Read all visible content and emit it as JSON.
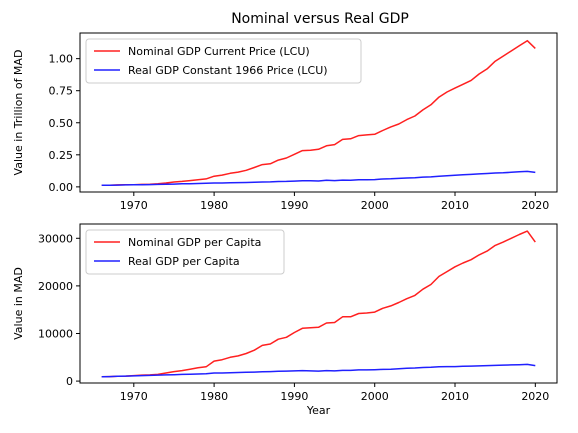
{
  "figure_title": "Nominal versus Real GDP",
  "chart_data": [
    {
      "type": "line",
      "title": "Nominal versus Real GDP",
      "xlabel": "",
      "ylabel": "Value in Trillion of MAD",
      "xlim": [
        1963.3,
        2022.7
      ],
      "ylim": [
        -0.04,
        1.2
      ],
      "xticks": [
        1970,
        1980,
        1990,
        2000,
        2010,
        2020
      ],
      "yticks": [
        0.0,
        0.25,
        0.5,
        0.75,
        1.0
      ],
      "ytick_labels": [
        "0.00",
        "0.25",
        "0.50",
        "0.75",
        "1.00"
      ],
      "grid": false,
      "legend_position": "upper-left",
      "x": [
        1966,
        1967,
        1968,
        1969,
        1970,
        1971,
        1972,
        1973,
        1974,
        1975,
        1976,
        1977,
        1978,
        1979,
        1980,
        1981,
        1982,
        1983,
        1984,
        1985,
        1986,
        1987,
        1988,
        1989,
        1990,
        1991,
        1992,
        1993,
        1994,
        1995,
        1996,
        1997,
        1998,
        1999,
        2000,
        2001,
        2002,
        2003,
        2004,
        2005,
        2006,
        2007,
        2008,
        2009,
        2010,
        2011,
        2012,
        2013,
        2014,
        2015,
        2016,
        2017,
        2018,
        2019,
        2020
      ],
      "series": [
        {
          "name": "Nominal GDP Current Price (LCU)",
          "color": "#ff2020",
          "values": [
            0.012,
            0.013,
            0.015,
            0.016,
            0.017,
            0.019,
            0.021,
            0.024,
            0.03,
            0.038,
            0.043,
            0.049,
            0.055,
            0.062,
            0.083,
            0.092,
            0.106,
            0.115,
            0.129,
            0.151,
            0.174,
            0.18,
            0.209,
            0.225,
            0.254,
            0.283,
            0.286,
            0.293,
            0.32,
            0.33,
            0.37,
            0.375,
            0.4,
            0.405,
            0.41,
            0.44,
            0.468,
            0.49,
            0.525,
            0.553,
            0.6,
            0.64,
            0.7,
            0.74,
            0.77,
            0.8,
            0.83,
            0.88,
            0.92,
            0.98,
            1.02,
            1.06,
            1.1,
            1.14,
            1.08
          ]
        },
        {
          "name": "Real GDP Constant 1966 Price (LCU)",
          "color": "#2020ff",
          "values": [
            0.012,
            0.013,
            0.014,
            0.015,
            0.016,
            0.017,
            0.018,
            0.019,
            0.02,
            0.022,
            0.024,
            0.025,
            0.026,
            0.028,
            0.03,
            0.03,
            0.032,
            0.033,
            0.034,
            0.036,
            0.038,
            0.039,
            0.042,
            0.043,
            0.045,
            0.048,
            0.047,
            0.046,
            0.051,
            0.049,
            0.053,
            0.052,
            0.056,
            0.056,
            0.057,
            0.061,
            0.063,
            0.066,
            0.069,
            0.071,
            0.076,
            0.078,
            0.083,
            0.087,
            0.09,
            0.094,
            0.097,
            0.101,
            0.104,
            0.108,
            0.11,
            0.114,
            0.118,
            0.121,
            0.113
          ]
        }
      ]
    },
    {
      "type": "line",
      "title": "",
      "xlabel": "Year",
      "ylabel": "Value in MAD",
      "xlim": [
        1963.3,
        2022.7
      ],
      "ylim": [
        -400,
        33000
      ],
      "xticks": [
        1970,
        1980,
        1990,
        2000,
        2010,
        2020
      ],
      "yticks": [
        0,
        10000,
        20000,
        30000
      ],
      "ytick_labels": [
        "0",
        "10000",
        "20000",
        "30000"
      ],
      "grid": false,
      "legend_position": "upper-left",
      "x": [
        1966,
        1967,
        1968,
        1969,
        1970,
        1971,
        1972,
        1973,
        1974,
        1975,
        1976,
        1977,
        1978,
        1979,
        1980,
        1981,
        1982,
        1983,
        1984,
        1985,
        1986,
        1987,
        1988,
        1989,
        1990,
        1991,
        1992,
        1993,
        1994,
        1995,
        1996,
        1997,
        1998,
        1999,
        2000,
        2001,
        2002,
        2003,
        2004,
        2005,
        2006,
        2007,
        2008,
        2009,
        2010,
        2011,
        2012,
        2013,
        2014,
        2015,
        2016,
        2017,
        2018,
        2019,
        2020
      ],
      "series": [
        {
          "name": "Nominal GDP per Capita",
          "color": "#ff2020",
          "values": [
            900,
            950,
            1000,
            1050,
            1150,
            1250,
            1300,
            1400,
            1700,
            2000,
            2200,
            2500,
            2800,
            3000,
            4200,
            4500,
            5000,
            5300,
            5800,
            6500,
            7500,
            7800,
            8800,
            9200,
            10200,
            11100,
            11200,
            11300,
            12200,
            12300,
            13500,
            13500,
            14200,
            14300,
            14500,
            15300,
            15800,
            16500,
            17300,
            18000,
            19300,
            20300,
            22000,
            23000,
            24000,
            24800,
            25500,
            26500,
            27300,
            28500,
            29200,
            30000,
            30800,
            31500,
            29200
          ]
        },
        {
          "name": "Real GDP per Capita",
          "color": "#2020ff",
          "values": [
            900,
            950,
            1000,
            1050,
            1100,
            1150,
            1200,
            1250,
            1300,
            1350,
            1400,
            1450,
            1500,
            1550,
            1700,
            1700,
            1750,
            1800,
            1850,
            1900,
            1950,
            2000,
            2050,
            2100,
            2150,
            2200,
            2150,
            2100,
            2200,
            2150,
            2250,
            2250,
            2350,
            2350,
            2400,
            2450,
            2500,
            2600,
            2700,
            2750,
            2850,
            2900,
            3000,
            3050,
            3050,
            3100,
            3150,
            3200,
            3250,
            3300,
            3350,
            3400,
            3450,
            3500,
            3250
          ]
        }
      ]
    }
  ]
}
